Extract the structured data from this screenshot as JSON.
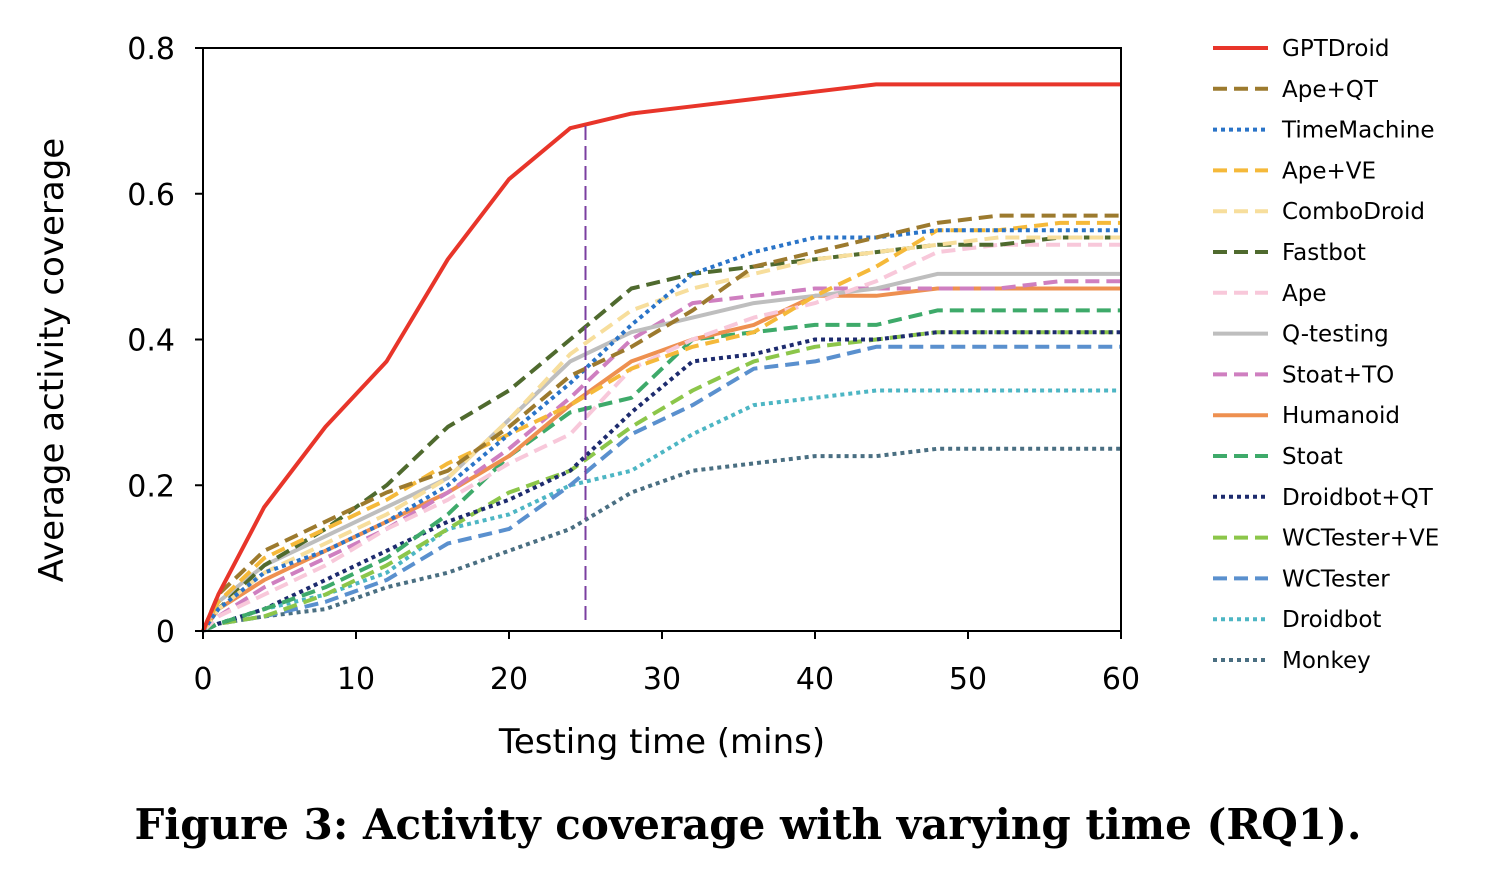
{
  "caption": "Figure 3: Activity coverage with varying time (RQ1).",
  "chart_data": {
    "type": "line",
    "xlabel": "Testing time (mins)",
    "ylabel": "Average activity coverage",
    "xlim": [
      0,
      60
    ],
    "ylim": [
      0,
      0.8
    ],
    "xticks": [
      "0",
      "10",
      "20",
      "30",
      "40",
      "50",
      "60"
    ],
    "yticks": [
      "0",
      "0.2",
      "0.4",
      "0.6",
      "0.8"
    ],
    "grid": false,
    "legend_position": "right",
    "vertical_marker_x": 25,
    "vertical_marker_color": "#7B3FA0",
    "x": [
      0,
      1,
      4,
      8,
      12,
      16,
      20,
      24,
      28,
      32,
      36,
      40,
      44,
      48,
      52,
      56,
      60
    ],
    "series": [
      {
        "name": "GPTDroid",
        "color": "#E8352A",
        "dash": "solid",
        "width": 4,
        "values": [
          0,
          0.05,
          0.17,
          0.28,
          0.37,
          0.51,
          0.62,
          0.69,
          0.71,
          0.72,
          0.73,
          0.74,
          0.75,
          0.75,
          0.75,
          0.75,
          0.75
        ]
      },
      {
        "name": "Ape+QT",
        "color": "#9C7A2E",
        "dash": "dashed",
        "width": 4,
        "values": [
          0,
          0.05,
          0.11,
          0.15,
          0.19,
          0.22,
          0.28,
          0.35,
          0.39,
          0.44,
          0.5,
          0.52,
          0.54,
          0.56,
          0.57,
          0.57,
          0.57
        ]
      },
      {
        "name": "TimeMachine",
        "color": "#2A74C8",
        "dash": "dotted",
        "width": 4,
        "values": [
          0,
          0.03,
          0.08,
          0.11,
          0.15,
          0.2,
          0.27,
          0.34,
          0.42,
          0.49,
          0.52,
          0.54,
          0.54,
          0.55,
          0.55,
          0.55,
          0.55
        ]
      },
      {
        "name": "Ape+VE",
        "color": "#F5B93A",
        "dash": "dashed",
        "width": 4,
        "values": [
          0,
          0.04,
          0.1,
          0.14,
          0.18,
          0.23,
          0.27,
          0.31,
          0.36,
          0.39,
          0.41,
          0.46,
          0.5,
          0.55,
          0.55,
          0.56,
          0.56
        ]
      },
      {
        "name": "ComboDroid",
        "color": "#F7DE9C",
        "dash": "dashed",
        "width": 4,
        "values": [
          0,
          0.03,
          0.08,
          0.12,
          0.16,
          0.21,
          0.29,
          0.38,
          0.44,
          0.47,
          0.49,
          0.51,
          0.52,
          0.53,
          0.54,
          0.54,
          0.54
        ]
      },
      {
        "name": "Fastbot",
        "color": "#4F6A2E",
        "dash": "dashed",
        "width": 4,
        "values": [
          0,
          0.03,
          0.09,
          0.14,
          0.2,
          0.28,
          0.33,
          0.4,
          0.47,
          0.49,
          0.5,
          0.51,
          0.52,
          0.53,
          0.53,
          0.54,
          0.54
        ]
      },
      {
        "name": "Ape",
        "color": "#F8C8DA",
        "dash": "dashed",
        "width": 4,
        "values": [
          0,
          0.02,
          0.05,
          0.09,
          0.14,
          0.18,
          0.23,
          0.27,
          0.36,
          0.4,
          0.43,
          0.45,
          0.48,
          0.52,
          0.53,
          0.53,
          0.53
        ]
      },
      {
        "name": "Q-testing",
        "color": "#BEBEBE",
        "dash": "solid",
        "width": 4,
        "values": [
          0,
          0.04,
          0.09,
          0.13,
          0.17,
          0.21,
          0.29,
          0.37,
          0.41,
          0.43,
          0.45,
          0.46,
          0.47,
          0.49,
          0.49,
          0.49,
          0.49
        ]
      },
      {
        "name": "Stoat+TO",
        "color": "#CF7FC0",
        "dash": "dashed",
        "width": 4,
        "values": [
          0,
          0.02,
          0.06,
          0.1,
          0.14,
          0.19,
          0.25,
          0.32,
          0.4,
          0.45,
          0.46,
          0.47,
          0.47,
          0.47,
          0.47,
          0.48,
          0.48
        ]
      },
      {
        "name": "Humanoid",
        "color": "#EE9050",
        "dash": "solid",
        "width": 4,
        "values": [
          0,
          0.03,
          0.07,
          0.11,
          0.15,
          0.19,
          0.24,
          0.31,
          0.37,
          0.4,
          0.42,
          0.46,
          0.46,
          0.47,
          0.47,
          0.47,
          0.47
        ]
      },
      {
        "name": "Stoat",
        "color": "#3EAA6A",
        "dash": "dashed",
        "width": 4,
        "values": [
          0,
          0.01,
          0.03,
          0.06,
          0.1,
          0.16,
          0.24,
          0.3,
          0.32,
          0.4,
          0.41,
          0.42,
          0.42,
          0.44,
          0.44,
          0.44,
          0.44
        ]
      },
      {
        "name": "Droidbot+QT",
        "color": "#1D2B6E",
        "dash": "dotted",
        "width": 4,
        "values": [
          0,
          0.01,
          0.03,
          0.07,
          0.11,
          0.15,
          0.18,
          0.22,
          0.3,
          0.37,
          0.38,
          0.4,
          0.4,
          0.41,
          0.41,
          0.41,
          0.41
        ]
      },
      {
        "name": "WCTester+VE",
        "color": "#8CC64A",
        "dash": "dashed",
        "width": 4,
        "values": [
          0,
          0.01,
          0.02,
          0.05,
          0.09,
          0.14,
          0.19,
          0.22,
          0.28,
          0.33,
          0.37,
          0.39,
          0.4,
          0.41,
          0.41,
          0.41,
          0.41
        ]
      },
      {
        "name": "WCTester",
        "color": "#5A90CE",
        "dash": "dashed",
        "width": 4,
        "values": [
          0,
          0.01,
          0.02,
          0.04,
          0.07,
          0.12,
          0.14,
          0.2,
          0.27,
          0.31,
          0.36,
          0.37,
          0.39,
          0.39,
          0.39,
          0.39,
          0.39
        ]
      },
      {
        "name": "Droidbot",
        "color": "#4DB6C4",
        "dash": "dotted",
        "width": 4,
        "values": [
          0,
          0.01,
          0.03,
          0.05,
          0.08,
          0.14,
          0.16,
          0.2,
          0.22,
          0.27,
          0.31,
          0.32,
          0.33,
          0.33,
          0.33,
          0.33,
          0.33
        ]
      },
      {
        "name": "Monkey",
        "color": "#4A6F82",
        "dash": "dotted",
        "width": 4,
        "values": [
          0,
          0.01,
          0.02,
          0.03,
          0.06,
          0.08,
          0.11,
          0.14,
          0.19,
          0.22,
          0.23,
          0.24,
          0.24,
          0.25,
          0.25,
          0.25,
          0.25
        ]
      }
    ]
  }
}
